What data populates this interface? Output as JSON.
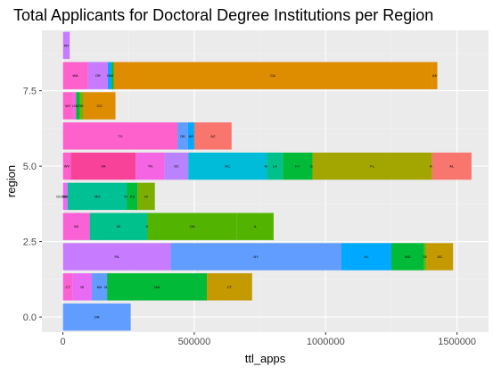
{
  "chart_data": {
    "type": "bar",
    "orientation": "horizontal",
    "stacked": true,
    "title": "Total Applicants for Doctoral Degree Institutions per Region",
    "xlabel": "ttl_apps",
    "ylabel": "region",
    "xlim": [
      -80000,
      1620000
    ],
    "ylim": [
      -0.5,
      9.5
    ],
    "x_ticks": [
      0,
      500000,
      1000000,
      1500000
    ],
    "x_tick_labels": [
      "0",
      "500000",
      "1000000",
      "1500000"
    ],
    "y_ticks": [
      0.0,
      2.5,
      5.0,
      7.5
    ],
    "y_tick_labels": [
      "0.0",
      "2.5",
      "5.0",
      "7.5"
    ],
    "grid": true,
    "legend": "none",
    "background": "#ebebeb",
    "bars": [
      {
        "region": 0,
        "segments": [
          {
            "label": "OR",
            "value": 258000,
            "color": "#619cff"
          }
        ]
      },
      {
        "region": 1,
        "segments": [
          {
            "label": "CT",
            "value": 38000,
            "color": "#fb61d7"
          },
          {
            "label": "RI",
            "value": 72000,
            "color": "#e76bf3"
          },
          {
            "label": "NH",
            "value": 58000,
            "color": "#619cff"
          },
          {
            "label": "ME",
            "value": 0,
            "color": "#00bfc4"
          },
          {
            "label": "MA",
            "value": 380000,
            "color": "#00ba38"
          },
          {
            "label": "CT",
            "value": 172000,
            "color": "#c49a00"
          }
        ]
      },
      {
        "region": 2,
        "segments": [
          {
            "label": "PA",
            "value": 410000,
            "color": "#c77cff"
          },
          {
            "label": "NY",
            "value": 650000,
            "color": "#619cff"
          },
          {
            "label": "NJ",
            "value": 190000,
            "color": "#00a9ff"
          },
          {
            "label": "MD",
            "value": 125000,
            "color": "#00ba38"
          },
          {
            "label": "DE",
            "value": 10000,
            "color": "#7cae00"
          },
          {
            "label": "DC",
            "value": 100000,
            "color": "#c49a00"
          }
        ]
      },
      {
        "region": 3,
        "segments": [
          {
            "label": "WI",
            "value": 102000,
            "color": "#fb61d7"
          },
          {
            "label": "MI",
            "value": 220000,
            "color": "#00c08b"
          },
          {
            "label": "IN",
            "value": 0,
            "color": "#00c08b"
          },
          {
            "label": "OH",
            "value": 340000,
            "color": "#53b400"
          },
          {
            "label": "IL",
            "value": 140000,
            "color": "#53b400"
          }
        ]
      },
      {
        "region": 4,
        "segments": [
          {
            "label": "DC/MN/NE",
            "value": 18000,
            "color": "#e76bf3"
          },
          {
            "label": "SD/ND",
            "value": 0,
            "color": "#00bcd8"
          },
          {
            "label": "MO",
            "value": 226000,
            "color": "#00c094"
          },
          {
            "label": "MN",
            "value": 0,
            "color": "#00c094"
          },
          {
            "label": "KS",
            "value": 40000,
            "color": "#00ba38"
          },
          {
            "label": "IA",
            "value": 66000,
            "color": "#7cae00"
          }
        ]
      },
      {
        "region": 5,
        "segments": [
          {
            "label": "WV",
            "value": 30000,
            "color": "#ff61cc"
          },
          {
            "label": "VA",
            "value": 247000,
            "color": "#f8429a"
          },
          {
            "label": "TN",
            "value": 110000,
            "color": "#f564e3"
          },
          {
            "label": "SC",
            "value": 90000,
            "color": "#b983ff"
          },
          {
            "label": "NC",
            "value": 300000,
            "color": "#00bcd8"
          },
          {
            "label": "MS",
            "value": 0,
            "color": "#00bcd8"
          },
          {
            "label": "LA",
            "value": 60000,
            "color": "#00c08b"
          },
          {
            "label": "KY",
            "value": 113000,
            "color": "#00ba38"
          },
          {
            "label": "GA",
            "value": 0,
            "color": "#7cae00"
          },
          {
            "label": "FL",
            "value": 455000,
            "color": "#a3a500"
          },
          {
            "label": "AR",
            "value": 0,
            "color": "#f8766d"
          },
          {
            "label": "AL",
            "value": 150000,
            "color": "#f8766d"
          }
        ]
      },
      {
        "region": 6,
        "segments": [
          {
            "label": "TX",
            "value": 436000,
            "color": "#ff61cc"
          },
          {
            "label": "OK",
            "value": 40000,
            "color": "#619cff"
          },
          {
            "label": "AR",
            "value": 24000,
            "color": "#00a9ff"
          },
          {
            "label": "AZ",
            "value": 142000,
            "color": "#f8766d"
          }
        ]
      },
      {
        "region": 7,
        "segments": [
          {
            "label": "WY",
            "value": 40000,
            "color": "#ff61cc"
          },
          {
            "label": "UT",
            "value": 10000,
            "color": "#f564e3"
          },
          {
            "label": "MT",
            "value": 15000,
            "color": "#00ba38"
          },
          {
            "label": "ID",
            "value": 13000,
            "color": "#7cae00"
          },
          {
            "label": "CO",
            "value": 122000,
            "color": "#de8c00"
          }
        ]
      },
      {
        "region": 8,
        "segments": [
          {
            "label": "WA",
            "value": 95000,
            "color": "#ff61cc"
          },
          {
            "label": "OR",
            "value": 76000,
            "color": "#c77cff"
          },
          {
            "label": "NV",
            "value": 14000,
            "color": "#00a9ff"
          },
          {
            "label": "HI",
            "value": 8000,
            "color": "#00ba38"
          },
          {
            "label": "CA",
            "value": 1212000,
            "color": "#de8c00"
          },
          {
            "label": "AK",
            "value": 20000,
            "color": "#de8c00"
          }
        ]
      },
      {
        "region": 9,
        "segments": [
          {
            "label": "PR",
            "value": 26000,
            "color": "#c77cff"
          }
        ]
      }
    ]
  }
}
